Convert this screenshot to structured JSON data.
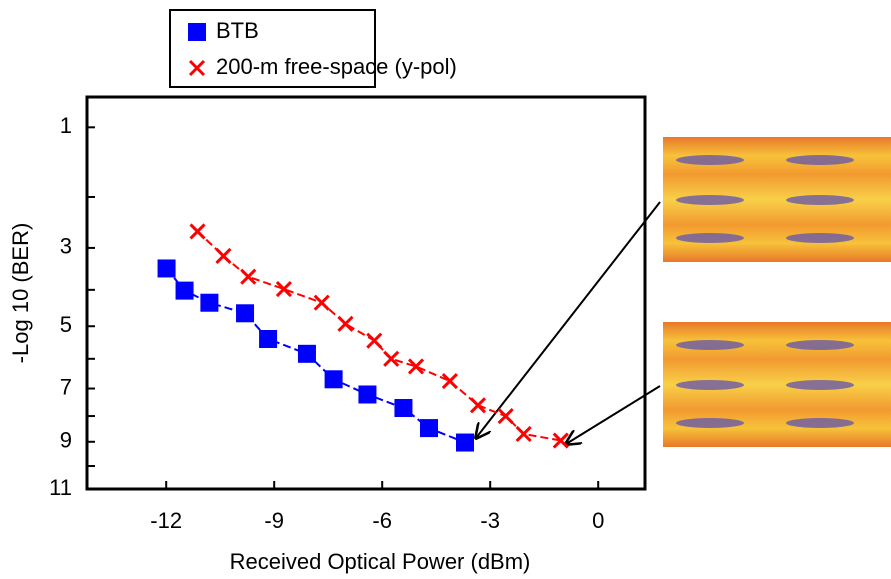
{
  "chart_data": {
    "type": "scatter",
    "x_label": "Received  Optical  Power  (dBm)",
    "y_label": "-Log 10 (BER)",
    "yscale": "q-factor",
    "xlim": [
      -14.2,
      1.3
    ],
    "xticks": [
      -12,
      -9,
      -6,
      -3,
      0
    ],
    "ylim": [
      0.69,
      11
    ],
    "yticks": [
      1,
      3,
      5,
      7,
      9,
      11
    ],
    "yminor_ticks": [
      2,
      4,
      6,
      8,
      10
    ],
    "legend": "top-left",
    "series": [
      {
        "name": "BTB",
        "color": "#0000ff",
        "marker": "square",
        "x": [
          -11.99,
          -11.49,
          -10.8,
          -9.81,
          -9.17,
          -8.09,
          -7.35,
          -6.41,
          -5.41,
          -4.7,
          -3.7
        ],
        "values": [
          3.47,
          4.02,
          4.34,
          4.63,
          5.38,
          5.84,
          6.68,
          7.21,
          7.7,
          8.46,
          9.03
        ]
      },
      {
        "name": "200-m free-space (y-pol)",
        "color": "#ff0000",
        "marker": "x",
        "x": [
          -11.13,
          -10.41,
          -9.72,
          -8.73,
          -7.68,
          -7.02,
          -6.22,
          -5.75,
          -5.06,
          -4.12,
          -3.34,
          -2.57,
          -2.07,
          -1.04
        ],
        "values": [
          2.65,
          3.18,
          3.67,
          3.98,
          4.34,
          4.93,
          5.43,
          6.0,
          6.25,
          6.74,
          7.6,
          8.0,
          8.69,
          8.95
        ]
      }
    ]
  }
}
